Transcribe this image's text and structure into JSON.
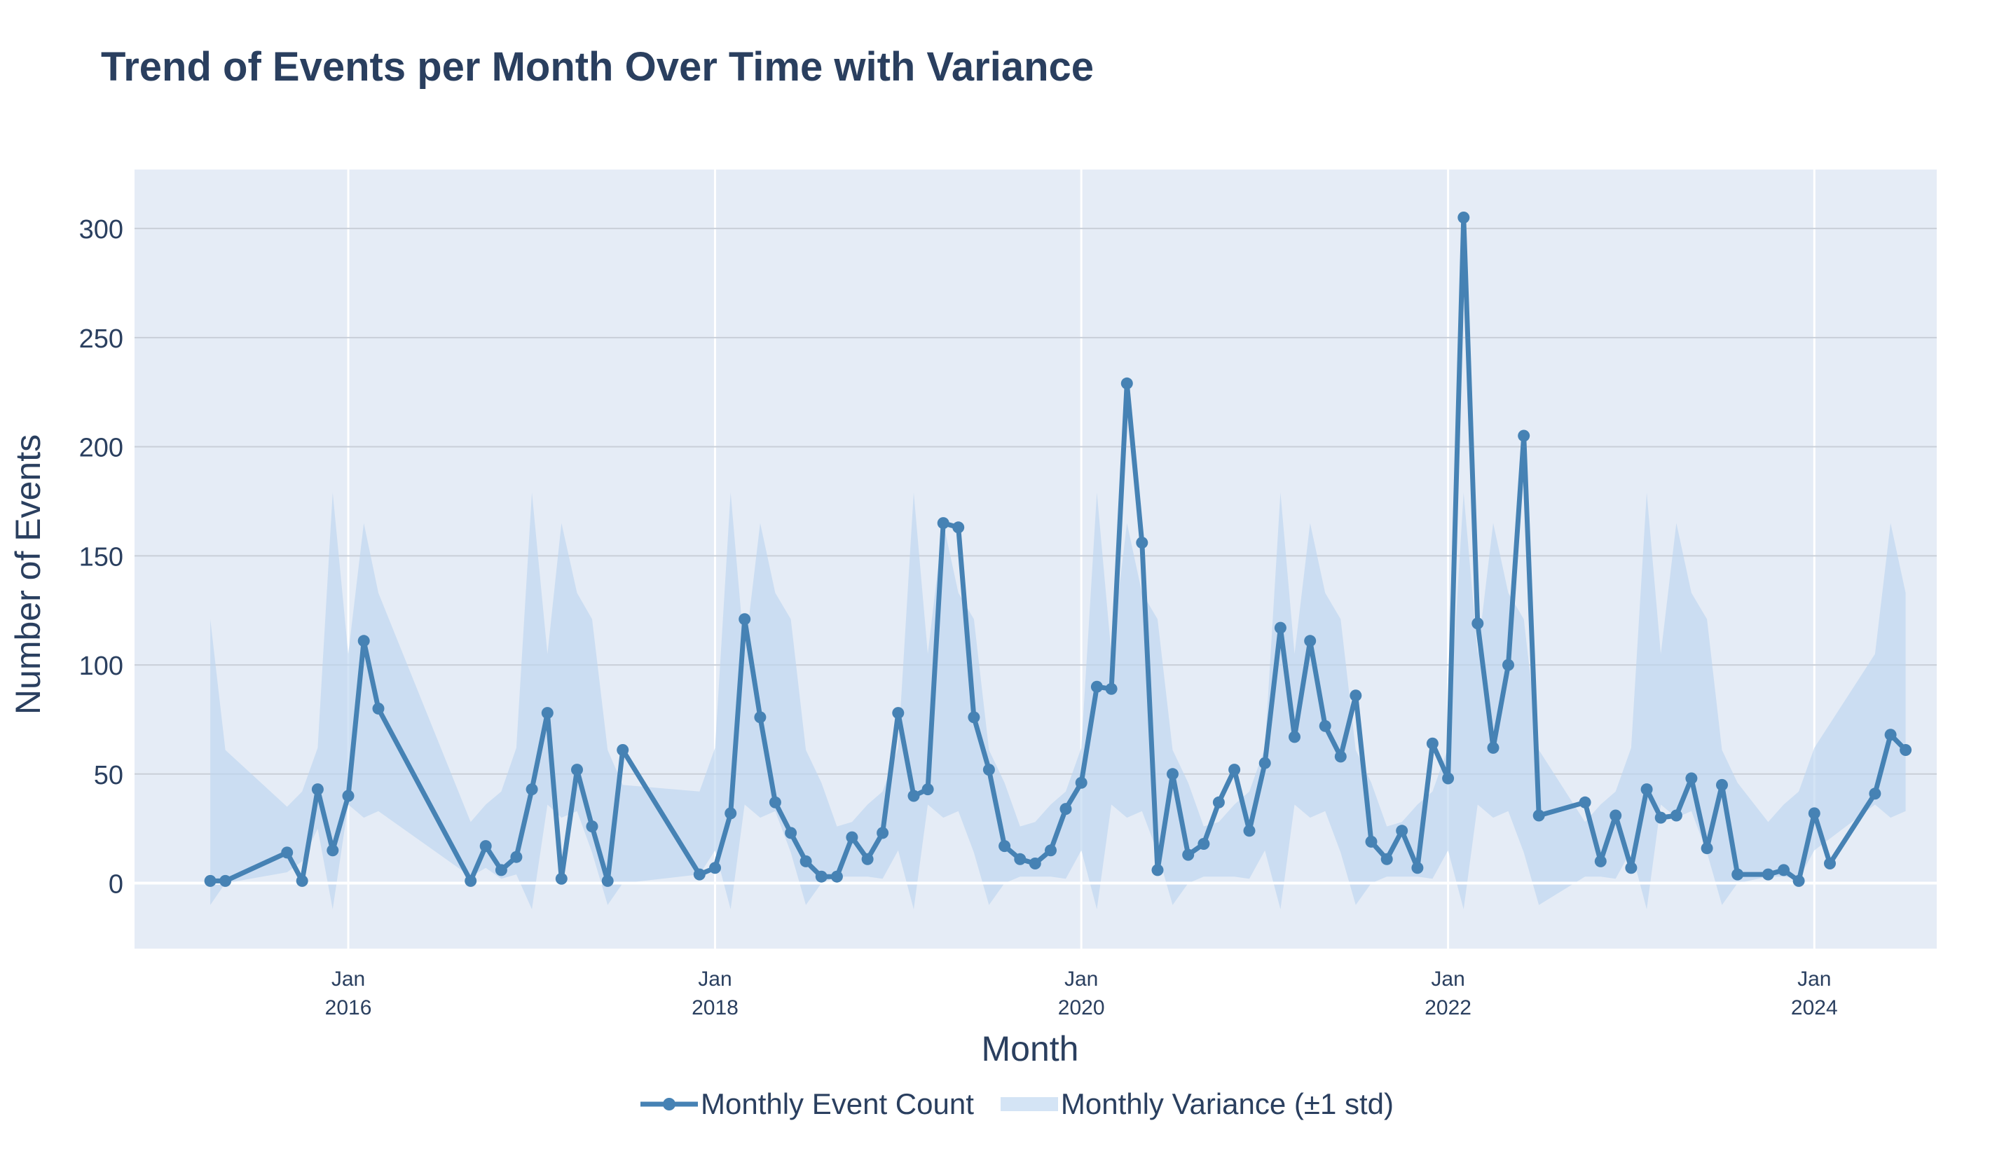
{
  "chart_data": {
    "type": "line",
    "title": "Trend of Events per Month Over Time with Variance",
    "xlabel": "Month",
    "ylabel": "Number of Events",
    "ylim": [
      -30,
      327
    ],
    "xlim": [
      "2014-11-01",
      "2024-09-01"
    ],
    "y_ticks": [
      0,
      50,
      100,
      150,
      200,
      250,
      300
    ],
    "x_ticks": [
      {
        "date": "2016-01-01",
        "month": "Jan",
        "year": "2016"
      },
      {
        "date": "2018-01-01",
        "month": "Jan",
        "year": "2018"
      },
      {
        "date": "2020-01-01",
        "month": "Jan",
        "year": "2020"
      },
      {
        "date": "2022-01-01",
        "month": "Jan",
        "year": "2022"
      },
      {
        "date": "2024-01-01",
        "month": "Jan",
        "year": "2024"
      }
    ],
    "grid": true,
    "legend_position": "bottom-center",
    "series": [
      {
        "name": "Monthly Event Count",
        "color": "#4682b4",
        "type": "line+markers",
        "points": [
          [
            "2015-04",
            1
          ],
          [
            "2015-05",
            1
          ],
          [
            "2015-09",
            14
          ],
          [
            "2015-10",
            1
          ],
          [
            "2015-11",
            43
          ],
          [
            "2015-12",
            15
          ],
          [
            "2016-01",
            40
          ],
          [
            "2016-02",
            111
          ],
          [
            "2016-03",
            80
          ],
          [
            "2016-09",
            1
          ],
          [
            "2016-10",
            17
          ],
          [
            "2016-11",
            6
          ],
          [
            "2016-12",
            12
          ],
          [
            "2017-01",
            43
          ],
          [
            "2017-02",
            78
          ],
          [
            "2017-03",
            2
          ],
          [
            "2017-04",
            52
          ],
          [
            "2017-05",
            26
          ],
          [
            "2017-06",
            1
          ],
          [
            "2017-07",
            61
          ],
          [
            "2017-12",
            4
          ],
          [
            "2018-01",
            7
          ],
          [
            "2018-02",
            32
          ],
          [
            "2018-03",
            121
          ],
          [
            "2018-04",
            76
          ],
          [
            "2018-05",
            37
          ],
          [
            "2018-06",
            23
          ],
          [
            "2018-07",
            10
          ],
          [
            "2018-08",
            3
          ],
          [
            "2018-09",
            3
          ],
          [
            "2018-10",
            21
          ],
          [
            "2018-11",
            11
          ],
          [
            "2018-12",
            23
          ],
          [
            "2019-01",
            78
          ],
          [
            "2019-02",
            40
          ],
          [
            "2019-03",
            43
          ],
          [
            "2019-04",
            165
          ],
          [
            "2019-05",
            163
          ],
          [
            "2019-06",
            76
          ],
          [
            "2019-07",
            52
          ],
          [
            "2019-08",
            17
          ],
          [
            "2019-09",
            11
          ],
          [
            "2019-10",
            9
          ],
          [
            "2019-11",
            15
          ],
          [
            "2019-12",
            34
          ],
          [
            "2020-01",
            46
          ],
          [
            "2020-02",
            90
          ],
          [
            "2020-03",
            89
          ],
          [
            "2020-04",
            229
          ],
          [
            "2020-05",
            156
          ],
          [
            "2020-06",
            6
          ],
          [
            "2020-07",
            50
          ],
          [
            "2020-08",
            13
          ],
          [
            "2020-09",
            18
          ],
          [
            "2020-10",
            37
          ],
          [
            "2020-11",
            52
          ],
          [
            "2020-12",
            24
          ],
          [
            "2021-01",
            55
          ],
          [
            "2021-02",
            117
          ],
          [
            "2021-03",
            67
          ],
          [
            "2021-04",
            111
          ],
          [
            "2021-05",
            72
          ],
          [
            "2021-06",
            58
          ],
          [
            "2021-07",
            86
          ],
          [
            "2021-08",
            19
          ],
          [
            "2021-09",
            11
          ],
          [
            "2021-10",
            24
          ],
          [
            "2021-11",
            7
          ],
          [
            "2021-12",
            64
          ],
          [
            "2022-01",
            48
          ],
          [
            "2022-02",
            305
          ],
          [
            "2022-03",
            119
          ],
          [
            "2022-04",
            62
          ],
          [
            "2022-05",
            100
          ],
          [
            "2022-06",
            205
          ],
          [
            "2022-07",
            31
          ],
          [
            "2022-10",
            37
          ],
          [
            "2022-11",
            10
          ],
          [
            "2022-12",
            31
          ],
          [
            "2023-01",
            7
          ],
          [
            "2023-02",
            43
          ],
          [
            "2023-03",
            30
          ],
          [
            "2023-04",
            31
          ],
          [
            "2023-05",
            48
          ],
          [
            "2023-06",
            16
          ],
          [
            "2023-07",
            45
          ],
          [
            "2023-08",
            4
          ],
          [
            "2023-10",
            4
          ],
          [
            "2023-11",
            6
          ],
          [
            "2023-12",
            1
          ],
          [
            "2024-01",
            32
          ],
          [
            "2024-02",
            9
          ],
          [
            "2024-05",
            41
          ],
          [
            "2024-06",
            68
          ],
          [
            "2024-07",
            61
          ]
        ]
      },
      {
        "name": "Monthly Variance (±1 std)",
        "color": "#bdd6ef",
        "type": "band",
        "points": [
          [
            "2015-04",
            -10,
            121
          ],
          [
            "2015-05",
            0,
            61
          ],
          [
            "2015-09",
            5,
            35
          ],
          [
            "2015-10",
            10,
            42
          ],
          [
            "2015-11",
            25,
            62
          ],
          [
            "2015-12",
            -12,
            179
          ],
          [
            "2016-01",
            36,
            105
          ],
          [
            "2016-02",
            30,
            165
          ],
          [
            "2016-03",
            33,
            133
          ],
          [
            "2016-09",
            3,
            28
          ],
          [
            "2016-10",
            7,
            36
          ],
          [
            "2016-11",
            2,
            42
          ],
          [
            "2016-12",
            4,
            62
          ],
          [
            "2017-01",
            -12,
            179
          ],
          [
            "2017-02",
            36,
            105
          ],
          [
            "2017-03",
            30,
            165
          ],
          [
            "2017-04",
            33,
            133
          ],
          [
            "2017-05",
            14,
            121
          ],
          [
            "2017-06",
            -10,
            61
          ],
          [
            "2017-07",
            0,
            45
          ],
          [
            "2017-12",
            4,
            42
          ],
          [
            "2018-01",
            15,
            62
          ],
          [
            "2018-02",
            -12,
            179
          ],
          [
            "2018-03",
            36,
            105
          ],
          [
            "2018-04",
            30,
            165
          ],
          [
            "2018-05",
            33,
            133
          ],
          [
            "2018-06",
            14,
            121
          ],
          [
            "2018-07",
            -10,
            61
          ],
          [
            "2018-08",
            0,
            46
          ],
          [
            "2018-09",
            3,
            26
          ],
          [
            "2018-10",
            3,
            28
          ],
          [
            "2018-11",
            3,
            36
          ],
          [
            "2018-12",
            2,
            42
          ],
          [
            "2019-01",
            15,
            62
          ],
          [
            "2019-02",
            -12,
            179
          ],
          [
            "2019-03",
            36,
            105
          ],
          [
            "2019-04",
            30,
            165
          ],
          [
            "2019-05",
            33,
            133
          ],
          [
            "2019-06",
            14,
            121
          ],
          [
            "2019-07",
            -10,
            61
          ],
          [
            "2019-08",
            0,
            46
          ],
          [
            "2019-09",
            3,
            26
          ],
          [
            "2019-10",
            3,
            28
          ],
          [
            "2019-11",
            3,
            36
          ],
          [
            "2019-12",
            2,
            42
          ],
          [
            "2020-01",
            15,
            62
          ],
          [
            "2020-02",
            -12,
            179
          ],
          [
            "2020-03",
            36,
            105
          ],
          [
            "2020-04",
            30,
            165
          ],
          [
            "2020-05",
            33,
            133
          ],
          [
            "2020-06",
            14,
            121
          ],
          [
            "2020-07",
            -10,
            61
          ],
          [
            "2020-08",
            0,
            46
          ],
          [
            "2020-09",
            3,
            26
          ],
          [
            "2020-10",
            3,
            28
          ],
          [
            "2020-11",
            3,
            36
          ],
          [
            "2020-12",
            2,
            42
          ],
          [
            "2021-01",
            15,
            62
          ],
          [
            "2021-02",
            -12,
            179
          ],
          [
            "2021-03",
            36,
            105
          ],
          [
            "2021-04",
            30,
            165
          ],
          [
            "2021-05",
            33,
            133
          ],
          [
            "2021-06",
            14,
            121
          ],
          [
            "2021-07",
            -10,
            61
          ],
          [
            "2021-08",
            0,
            46
          ],
          [
            "2021-09",
            3,
            26
          ],
          [
            "2021-10",
            3,
            28
          ],
          [
            "2021-11",
            3,
            36
          ],
          [
            "2021-12",
            2,
            42
          ],
          [
            "2022-01",
            15,
            62
          ],
          [
            "2022-02",
            -12,
            179
          ],
          [
            "2022-03",
            36,
            105
          ],
          [
            "2022-04",
            30,
            165
          ],
          [
            "2022-05",
            33,
            133
          ],
          [
            "2022-06",
            14,
            121
          ],
          [
            "2022-07",
            -10,
            61
          ],
          [
            "2022-10",
            3,
            28
          ],
          [
            "2022-11",
            3,
            36
          ],
          [
            "2022-12",
            2,
            42
          ],
          [
            "2023-01",
            15,
            62
          ],
          [
            "2023-02",
            -12,
            179
          ],
          [
            "2023-03",
            36,
            105
          ],
          [
            "2023-04",
            30,
            165
          ],
          [
            "2023-05",
            33,
            133
          ],
          [
            "2023-06",
            14,
            121
          ],
          [
            "2023-07",
            -10,
            61
          ],
          [
            "2023-08",
            0,
            46
          ],
          [
            "2023-10",
            3,
            28
          ],
          [
            "2023-11",
            3,
            36
          ],
          [
            "2023-12",
            2,
            42
          ],
          [
            "2024-01",
            15,
            62
          ],
          [
            "2024-05",
            36,
            105
          ],
          [
            "2024-06",
            30,
            165
          ],
          [
            "2024-07",
            33,
            133
          ]
        ]
      }
    ]
  },
  "colors": {
    "plot_background": "#e5ecf6",
    "gridline": "#c9cfd8",
    "zeroline": "#ffffff",
    "line": "#4682b4",
    "band": "#bdd6ef",
    "text": "#2a3f5f"
  }
}
